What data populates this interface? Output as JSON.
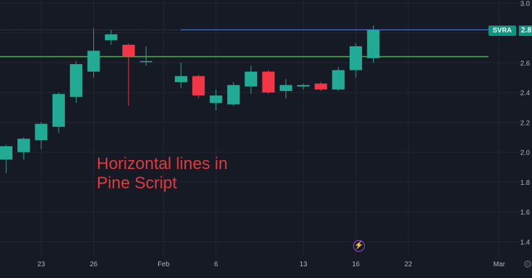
{
  "chart_data": {
    "type": "candlestick",
    "title": "",
    "symbol": "SVRA",
    "last_price_label": "2.8",
    "annotation": [
      "Horizontal lines in",
      "Pine Script"
    ],
    "x_ticks": [
      "23",
      "26",
      "Feb",
      "6",
      "13",
      "16",
      "22",
      "Mar"
    ],
    "y_ticks": [
      "3.0",
      "2.8",
      "2.6",
      "2.4",
      "2.2",
      "2.0",
      "1.8",
      "1.6",
      "1.4"
    ],
    "y_tick_values": [
      3.0,
      2.8,
      2.6,
      2.4,
      2.2,
      2.0,
      1.8,
      1.6,
      1.4
    ],
    "ylim": [
      1.3,
      3.02
    ],
    "x_slots": 31,
    "horizontal_lines": [
      {
        "name": "blue",
        "value": 2.82,
        "color": "#2962ff",
        "start_slot": 10
      },
      {
        "name": "green",
        "value": 2.64,
        "color": "#4caf50",
        "start_slot": 0
      }
    ],
    "candles": [
      {
        "open": 1.95,
        "high": 2.05,
        "low": 1.86,
        "close": 2.04
      },
      {
        "open": 2.0,
        "high": 2.1,
        "low": 1.95,
        "close": 2.09
      },
      {
        "open": 2.08,
        "high": 2.2,
        "low": 2.02,
        "close": 2.19
      },
      {
        "open": 2.17,
        "high": 2.4,
        "low": 2.13,
        "close": 2.39
      },
      {
        "open": 2.37,
        "high": 2.61,
        "low": 2.33,
        "close": 2.59
      },
      {
        "open": 2.54,
        "high": 2.83,
        "low": 2.5,
        "close": 2.68
      },
      {
        "open": 2.75,
        "high": 2.82,
        "low": 2.72,
        "close": 2.79
      },
      {
        "open": 2.72,
        "high": 2.73,
        "low": 2.31,
        "close": 2.64
      },
      {
        "open": 2.61,
        "high": 2.71,
        "low": 2.58,
        "close": 2.61
      },
      null,
      {
        "open": 2.47,
        "high": 2.6,
        "low": 2.43,
        "close": 2.51
      },
      {
        "open": 2.51,
        "high": 2.52,
        "low": 2.36,
        "close": 2.38
      },
      {
        "open": 2.33,
        "high": 2.42,
        "low": 2.28,
        "close": 2.38
      },
      {
        "open": 2.32,
        "high": 2.47,
        "low": 2.31,
        "close": 2.45
      },
      {
        "open": 2.44,
        "high": 2.58,
        "low": 2.39,
        "close": 2.54
      },
      {
        "open": 2.54,
        "high": 2.55,
        "low": 2.39,
        "close": 2.4
      },
      {
        "open": 2.41,
        "high": 2.49,
        "low": 2.36,
        "close": 2.45
      },
      {
        "open": 2.44,
        "high": 2.46,
        "low": 2.42,
        "close": 2.45
      },
      {
        "open": 2.46,
        "high": 2.47,
        "low": 2.41,
        "close": 2.42
      },
      {
        "open": 2.42,
        "high": 2.57,
        "low": 2.41,
        "close": 2.55
      },
      {
        "open": 2.55,
        "high": 2.73,
        "low": 2.5,
        "close": 2.71
      },
      {
        "open": 2.63,
        "high": 2.85,
        "low": 2.6,
        "close": 2.82
      }
    ]
  },
  "colors": {
    "background": "#161a25",
    "up": "#22ab94",
    "down": "#f23645",
    "grid": "#242733",
    "axis_text": "#b2b5be",
    "text_overlay": "#e03a3e",
    "last_price": "#089981"
  },
  "icons": {
    "event": "lightning-bolt-icon",
    "settings": "gear-icon"
  }
}
